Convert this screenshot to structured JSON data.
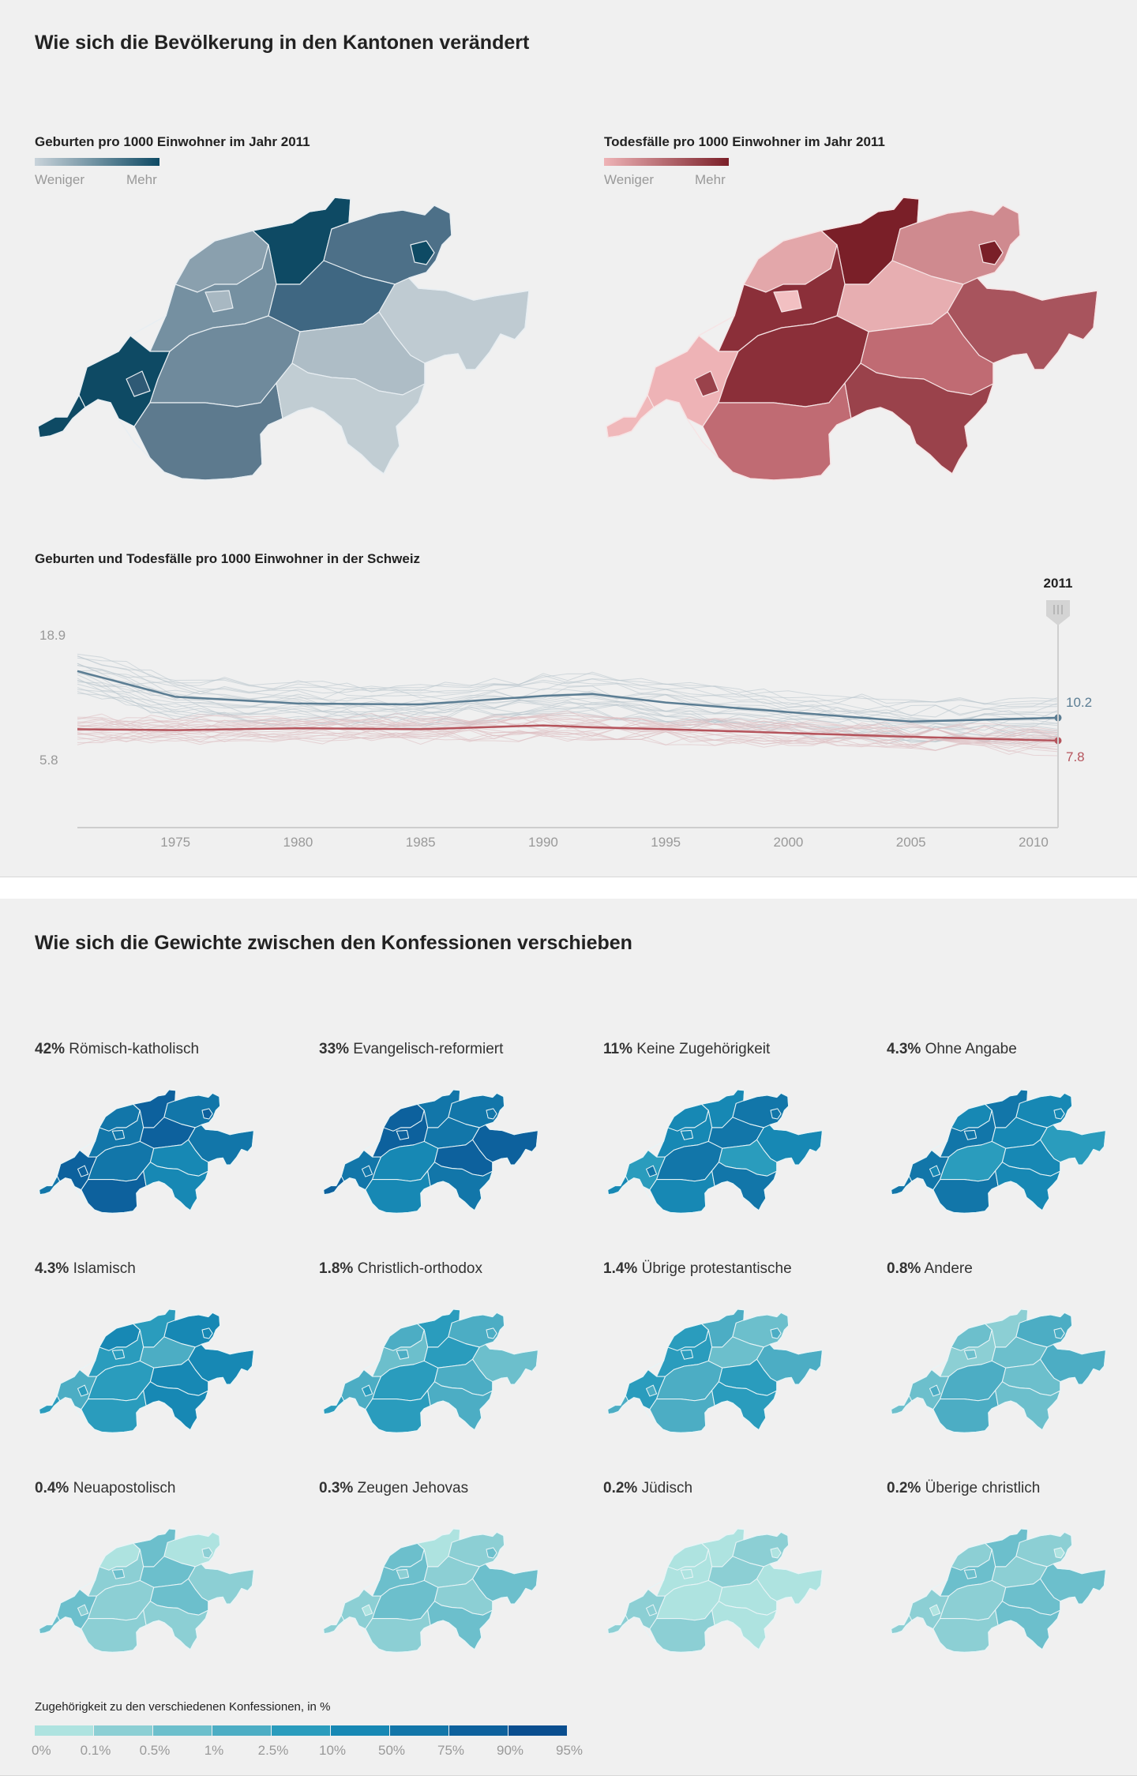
{
  "section1": {
    "title": "Wie sich die Bevölkerung in den Kantonen verändert",
    "births_map": {
      "title": "Geburten pro 1000 Einwohner im Jahr 2011",
      "less": "Weniger",
      "more": "Mehr"
    },
    "deaths_map": {
      "title": "Todesfälle pro 1000 Einwohner im Jahr 2011",
      "less": "Weniger",
      "more": "Mehr"
    }
  },
  "chart_data": {
    "type": "line",
    "title": "Geburten und Todesfälle pro 1000 Einwohner in der Schweiz",
    "x": [
      1971,
      1975,
      1980,
      1985,
      1990,
      1992,
      1995,
      2000,
      2005,
      2011
    ],
    "xticks": [
      1975,
      1980,
      1985,
      1990,
      1995,
      2000,
      2005,
      2010
    ],
    "ylim": [
      5.8,
      18.9
    ],
    "ytick_labels": [
      "18.9",
      "5.8"
    ],
    "marker_label": "2011",
    "series": [
      {
        "name": "Geburten",
        "color": "#5b7d93",
        "values": [
          15.1,
          12.4,
          11.7,
          11.6,
          12.5,
          12.7,
          11.8,
          10.8,
          9.8,
          10.2
        ],
        "end_label": "10.2"
      },
      {
        "name": "Todesfälle",
        "color": "#b5545c",
        "values": [
          9.0,
          8.9,
          9.1,
          9.0,
          9.4,
          9.2,
          9.0,
          8.6,
          8.2,
          7.8
        ],
        "end_label": "7.8"
      }
    ]
  },
  "section2": {
    "title": "Wie sich die Gewichte zwischen den Konfessionen verschieben",
    "religions": [
      {
        "pct": "42%",
        "name": "Römisch-katholisch",
        "level": 6
      },
      {
        "pct": "33%",
        "name": "Evangelisch-reformiert",
        "level": 6
      },
      {
        "pct": "11%",
        "name": "Keine Zugehörigkeit",
        "level": 5
      },
      {
        "pct": "4.3%",
        "name": "Ohne Angabe",
        "level": 5
      },
      {
        "pct": "4.3%",
        "name": "Islamisch",
        "level": 4
      },
      {
        "pct": "1.8%",
        "name": "Christlich-orthodox",
        "level": 3
      },
      {
        "pct": "1.4%",
        "name": "Übrige protestantische",
        "level": 3
      },
      {
        "pct": "0.8%",
        "name": "Andere",
        "level": 2
      },
      {
        "pct": "0.4%",
        "name": "Neuapostolisch",
        "level": 1
      },
      {
        "pct": "0.3%",
        "name": "Zeugen Jehovas",
        "level": 1
      },
      {
        "pct": "0.2%",
        "name": "Jüdisch",
        "level": 0
      },
      {
        "pct": "0.2%",
        "name": "Überige christlich",
        "level": 1
      }
    ],
    "scale": {
      "title": "Zugehörigkeit zu den verschiedenen Konfessionen, in %",
      "ticks": [
        "0%",
        "0.1%",
        "0.5%",
        "1%",
        "2.5%",
        "10%",
        "50%",
        "75%",
        "90%",
        "95%"
      ],
      "colors": [
        "#aee3e0",
        "#8ccfd4",
        "#6cbfcc",
        "#4cadc4",
        "#2a9cbd",
        "#1788b4",
        "#1276a9",
        "#0d619d",
        "#0a4e8f"
      ]
    }
  }
}
